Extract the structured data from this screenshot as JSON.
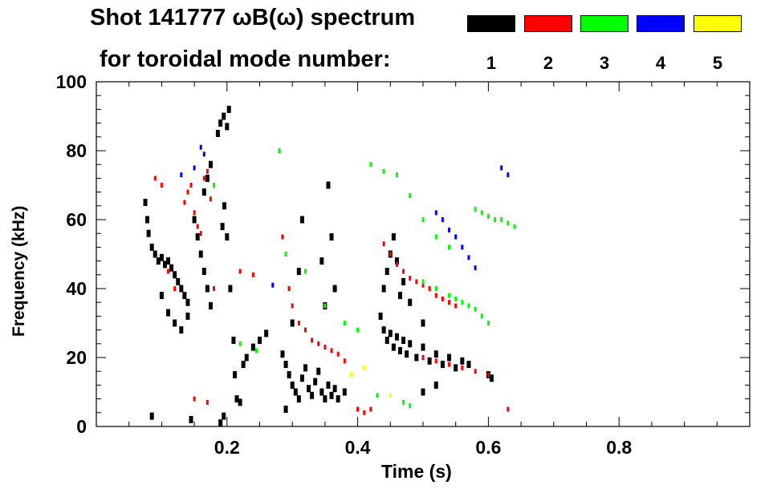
{
  "title_line1": "Shot 141777 ωB(ω) spectrum",
  "title_line2": "for toroidal mode number:",
  "legend": [
    {
      "label": "1",
      "color": "#000000"
    },
    {
      "label": "2",
      "color": "#ff0000"
    },
    {
      "label": "3",
      "color": "#00ff00"
    },
    {
      "label": "4",
      "color": "#0000ff"
    },
    {
      "label": "5",
      "color": "#ffff00"
    }
  ],
  "chart_data": {
    "type": "scatter",
    "title": "Shot 141777 ωB(ω) spectrum",
    "xlabel": "Time (s)",
    "ylabel": "Frequency (kHz)",
    "xlim": [
      0.0,
      1.0
    ],
    "ylim": [
      0,
      100
    ],
    "xticks": [
      0.2,
      0.4,
      0.6,
      0.8
    ],
    "yticks": [
      0,
      20,
      40,
      60,
      80,
      100
    ],
    "grid": false,
    "legend_position": "top",
    "series": [
      {
        "name": "1",
        "color": "#000000",
        "points": [
          [
            0.075,
            65
          ],
          [
            0.078,
            60
          ],
          [
            0.08,
            56
          ],
          [
            0.085,
            52
          ],
          [
            0.09,
            50
          ],
          [
            0.095,
            48
          ],
          [
            0.1,
            49
          ],
          [
            0.105,
            47
          ],
          [
            0.11,
            48
          ],
          [
            0.115,
            46
          ],
          [
            0.12,
            44
          ],
          [
            0.125,
            42
          ],
          [
            0.13,
            40
          ],
          [
            0.135,
            38
          ],
          [
            0.14,
            36
          ],
          [
            0.1,
            38
          ],
          [
            0.11,
            33
          ],
          [
            0.12,
            30
          ],
          [
            0.13,
            28
          ],
          [
            0.14,
            32
          ],
          [
            0.15,
            60
          ],
          [
            0.155,
            55
          ],
          [
            0.16,
            50
          ],
          [
            0.165,
            45
          ],
          [
            0.17,
            40
          ],
          [
            0.175,
            35
          ],
          [
            0.165,
            68
          ],
          [
            0.17,
            72
          ],
          [
            0.175,
            76
          ],
          [
            0.19,
            88
          ],
          [
            0.195,
            90
          ],
          [
            0.2,
            87
          ],
          [
            0.203,
            92
          ],
          [
            0.186,
            85
          ],
          [
            0.193,
            58
          ],
          [
            0.196,
            64
          ],
          [
            0.2,
            55
          ],
          [
            0.205,
            40
          ],
          [
            0.21,
            25
          ],
          [
            0.212,
            15
          ],
          [
            0.215,
            8
          ],
          [
            0.22,
            7
          ],
          [
            0.225,
            18
          ],
          [
            0.23,
            20
          ],
          [
            0.24,
            23
          ],
          [
            0.25,
            25
          ],
          [
            0.26,
            27
          ],
          [
            0.085,
            3
          ],
          [
            0.145,
            2
          ],
          [
            0.19,
            1
          ],
          [
            0.195,
            3
          ],
          [
            0.285,
            21
          ],
          [
            0.29,
            18
          ],
          [
            0.295,
            15
          ],
          [
            0.3,
            12
          ],
          [
            0.305,
            10
          ],
          [
            0.31,
            8
          ],
          [
            0.315,
            14
          ],
          [
            0.32,
            17
          ],
          [
            0.325,
            11
          ],
          [
            0.33,
            9
          ],
          [
            0.335,
            13
          ],
          [
            0.34,
            16
          ],
          [
            0.345,
            10
          ],
          [
            0.35,
            8
          ],
          [
            0.355,
            12
          ],
          [
            0.36,
            9
          ],
          [
            0.365,
            11
          ],
          [
            0.37,
            8
          ],
          [
            0.38,
            10
          ],
          [
            0.29,
            5
          ],
          [
            0.3,
            30
          ],
          [
            0.31,
            45
          ],
          [
            0.315,
            60
          ],
          [
            0.345,
            48
          ],
          [
            0.35,
            35
          ],
          [
            0.355,
            70
          ],
          [
            0.36,
            55
          ],
          [
            0.365,
            40
          ],
          [
            0.435,
            32
          ],
          [
            0.44,
            28
          ],
          [
            0.445,
            25
          ],
          [
            0.45,
            27
          ],
          [
            0.455,
            23
          ],
          [
            0.46,
            26
          ],
          [
            0.465,
            22
          ],
          [
            0.47,
            25
          ],
          [
            0.475,
            21
          ],
          [
            0.48,
            24
          ],
          [
            0.49,
            20
          ],
          [
            0.5,
            23
          ],
          [
            0.51,
            19
          ],
          [
            0.52,
            21
          ],
          [
            0.53,
            18
          ],
          [
            0.54,
            20
          ],
          [
            0.55,
            17
          ],
          [
            0.56,
            19
          ],
          [
            0.57,
            18
          ],
          [
            0.44,
            40
          ],
          [
            0.445,
            45
          ],
          [
            0.45,
            50
          ],
          [
            0.455,
            55
          ],
          [
            0.46,
            48
          ],
          [
            0.465,
            38
          ],
          [
            0.47,
            42
          ],
          [
            0.48,
            36
          ],
          [
            0.5,
            30
          ],
          [
            0.6,
            15
          ],
          [
            0.605,
            14
          ],
          [
            0.5,
            10
          ],
          [
            0.52,
            12
          ]
        ]
      },
      {
        "name": "2",
        "color": "#ff0000",
        "points": [
          [
            0.09,
            72
          ],
          [
            0.1,
            70
          ],
          [
            0.11,
            45
          ],
          [
            0.12,
            40
          ],
          [
            0.135,
            65
          ],
          [
            0.14,
            68
          ],
          [
            0.145,
            70
          ],
          [
            0.15,
            62
          ],
          [
            0.155,
            58
          ],
          [
            0.16,
            56
          ],
          [
            0.165,
            72
          ],
          [
            0.17,
            74
          ],
          [
            0.175,
            66
          ],
          [
            0.18,
            40
          ],
          [
            0.15,
            8
          ],
          [
            0.17,
            7
          ],
          [
            0.22,
            45
          ],
          [
            0.24,
            44
          ],
          [
            0.285,
            55
          ],
          [
            0.29,
            50
          ],
          [
            0.295,
            40
          ],
          [
            0.3,
            35
          ],
          [
            0.31,
            30
          ],
          [
            0.32,
            28
          ],
          [
            0.33,
            25
          ],
          [
            0.34,
            24
          ],
          [
            0.35,
            23
          ],
          [
            0.36,
            22
          ],
          [
            0.37,
            21
          ],
          [
            0.38,
            19
          ],
          [
            0.4,
            5
          ],
          [
            0.41,
            4
          ],
          [
            0.42,
            5
          ],
          [
            0.44,
            53
          ],
          [
            0.45,
            50
          ],
          [
            0.46,
            47
          ],
          [
            0.47,
            45
          ],
          [
            0.48,
            43
          ],
          [
            0.49,
            42
          ],
          [
            0.5,
            41
          ],
          [
            0.51,
            40
          ],
          [
            0.52,
            38
          ],
          [
            0.53,
            37
          ],
          [
            0.54,
            36
          ],
          [
            0.55,
            35
          ],
          [
            0.5,
            20
          ],
          [
            0.52,
            19
          ],
          [
            0.54,
            18
          ],
          [
            0.56,
            17
          ],
          [
            0.58,
            16
          ],
          [
            0.6,
            15
          ],
          [
            0.63,
            5
          ]
        ]
      },
      {
        "name": "3",
        "color": "#00ff00",
        "points": [
          [
            0.18,
            70
          ],
          [
            0.22,
            24
          ],
          [
            0.245,
            22
          ],
          [
            0.28,
            80
          ],
          [
            0.29,
            50
          ],
          [
            0.32,
            45
          ],
          [
            0.35,
            35
          ],
          [
            0.38,
            30
          ],
          [
            0.4,
            28
          ],
          [
            0.43,
            9
          ],
          [
            0.42,
            76
          ],
          [
            0.44,
            74
          ],
          [
            0.46,
            73
          ],
          [
            0.48,
            67
          ],
          [
            0.5,
            60
          ],
          [
            0.52,
            55
          ],
          [
            0.54,
            52
          ],
          [
            0.5,
            42
          ],
          [
            0.52,
            40
          ],
          [
            0.54,
            38
          ],
          [
            0.55,
            37
          ],
          [
            0.56,
            36
          ],
          [
            0.57,
            35
          ],
          [
            0.58,
            34
          ],
          [
            0.59,
            32
          ],
          [
            0.6,
            30
          ],
          [
            0.58,
            63
          ],
          [
            0.59,
            62
          ],
          [
            0.6,
            61
          ],
          [
            0.61,
            60
          ],
          [
            0.62,
            60
          ],
          [
            0.63,
            59
          ],
          [
            0.64,
            58
          ],
          [
            0.47,
            7
          ],
          [
            0.48,
            6
          ]
        ]
      },
      {
        "name": "4",
        "color": "#0000ff",
        "points": [
          [
            0.13,
            73
          ],
          [
            0.15,
            75
          ],
          [
            0.16,
            81
          ],
          [
            0.165,
            79
          ],
          [
            0.27,
            41
          ],
          [
            0.52,
            62
          ],
          [
            0.53,
            60
          ],
          [
            0.54,
            57
          ],
          [
            0.55,
            55
          ],
          [
            0.56,
            52
          ],
          [
            0.57,
            49
          ],
          [
            0.58,
            46
          ],
          [
            0.62,
            75
          ],
          [
            0.63,
            73
          ]
        ]
      },
      {
        "name": "5",
        "color": "#ffff00",
        "points": [
          [
            0.39,
            15
          ],
          [
            0.41,
            17
          ],
          [
            0.45,
            9
          ]
        ]
      }
    ]
  }
}
